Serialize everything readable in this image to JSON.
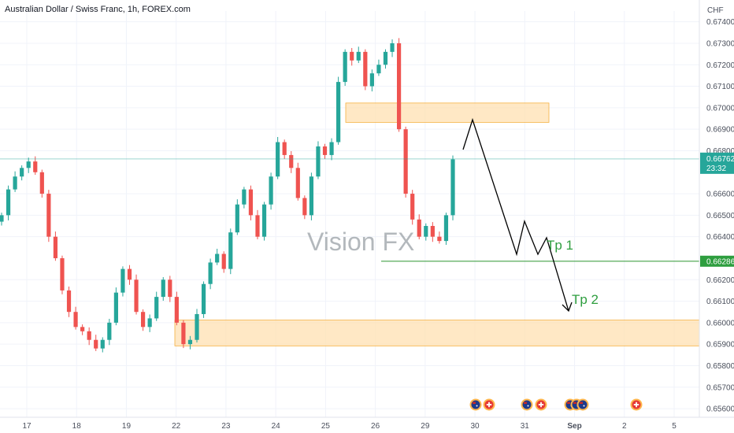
{
  "header": {
    "symbol_title": "Australian Dollar / Swiss Franc, 1h, FOREX.com"
  },
  "chart_data": {
    "type": "candlestick",
    "currency_label": "CHF",
    "y_ticks": [
      "0.67400",
      "0.67300",
      "0.67200",
      "0.67100",
      "0.67000",
      "0.66900",
      "0.66800",
      "0.66600",
      "0.66500",
      "0.66400",
      "0.66200",
      "0.66100",
      "0.66000",
      "0.65900",
      "0.65800",
      "0.65700",
      "0.65600"
    ],
    "ylim": [
      0.6556,
      0.6745
    ],
    "x_ticks": [
      "17",
      "18",
      "19",
      "22",
      "23",
      "24",
      "25",
      "26",
      "29",
      "30",
      "31",
      "Sep",
      "2",
      "5"
    ],
    "current_price": {
      "label": "0.66762",
      "countdown": "23:32",
      "value": 0.66762
    },
    "tp_level_price": {
      "label": "0.66286",
      "value": 0.66286
    },
    "watermark": "Vision FX",
    "annotations": {
      "tp1": "Tp 1",
      "tp2": "Tp 2"
    },
    "zones": [
      {
        "name": "supply-zone",
        "from": 0.66932,
        "to": 0.67022
      },
      {
        "name": "demand-zone",
        "from": 0.65892,
        "to": 0.66012
      }
    ],
    "series_close": [
      0.665,
      0.6662,
      0.6668,
      0.6672,
      0.6675,
      0.667,
      0.666,
      0.664,
      0.663,
      0.6615,
      0.6605,
      0.6598,
      0.6596,
      0.6592,
      0.6588,
      0.6592,
      0.66,
      0.6614,
      0.6625,
      0.662,
      0.6605,
      0.6598,
      0.6602,
      0.6612,
      0.662,
      0.6612,
      0.66,
      0.659,
      0.6592,
      0.6604,
      0.6618,
      0.6628,
      0.6632,
      0.6625,
      0.6642,
      0.6655,
      0.6662,
      0.665,
      0.664,
      0.6655,
      0.6668,
      0.6684,
      0.6678,
      0.6672,
      0.6658,
      0.665,
      0.6668,
      0.6682,
      0.6678,
      0.6684,
      0.6712,
      0.6726,
      0.6722,
      0.6726,
      0.671,
      0.6716,
      0.672,
      0.6726,
      0.673,
      0.669,
      0.666,
      0.6648,
      0.664,
      0.6645,
      0.664,
      0.6638,
      0.665,
      0.6676
    ],
    "colors": {
      "up": "#26a69a",
      "down": "#ef5350",
      "zone_fill": "#ffe0b2",
      "zone_border": "#f5b041",
      "tp_line": "#43a047",
      "arrow": "#000000",
      "price_tag": "#26a69a",
      "tp_tag": "#2e9e3f"
    },
    "events": {
      "a1": "au-flag-icon",
      "a2": "ch-flag-icon",
      "a3": "au-flag-icon",
      "a4": "ch-flag-icon",
      "a5": "au-flag-icon",
      "a6": "au-flag-icon",
      "a7": "au-flag-icon",
      "a8": "ch-flag-icon"
    }
  }
}
